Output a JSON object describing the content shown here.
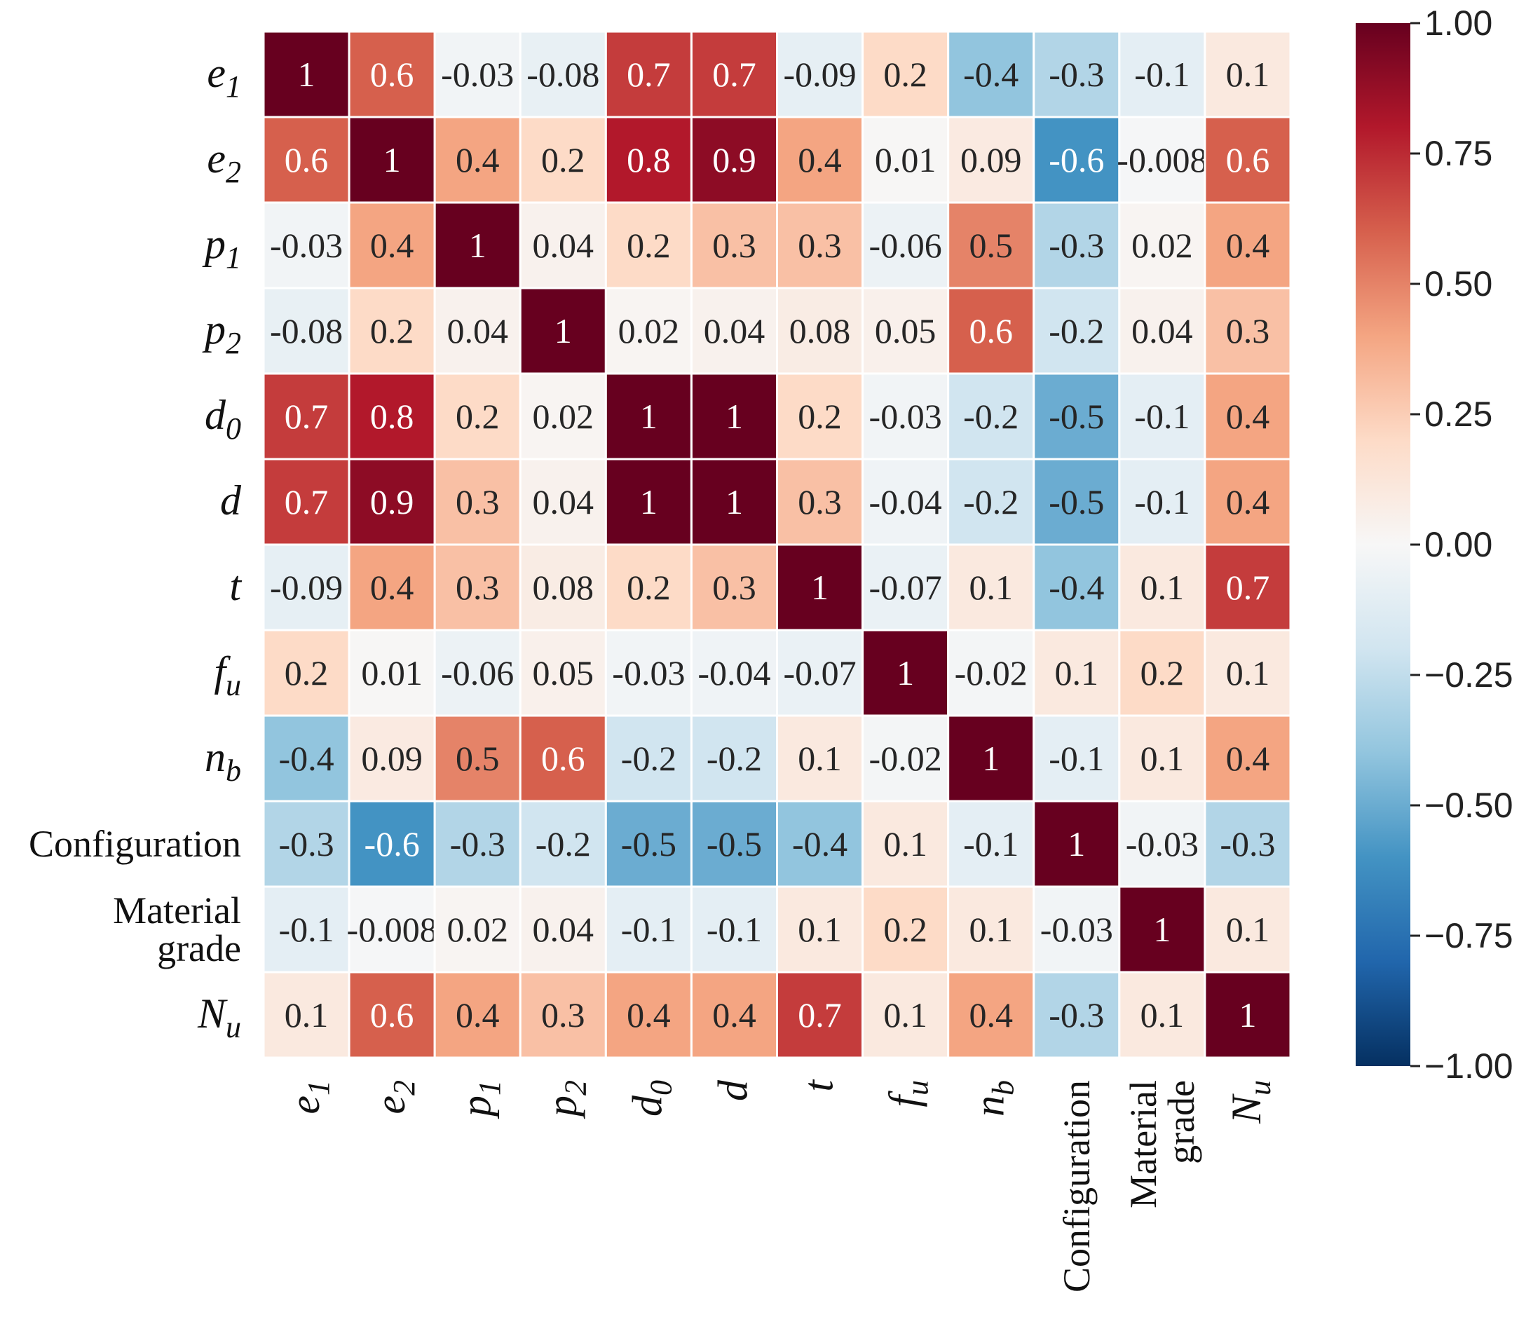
{
  "chart_data": {
    "type": "heatmap",
    "title": "",
    "variables": [
      {
        "key": "e1",
        "base": "e",
        "sub": "1"
      },
      {
        "key": "e2",
        "base": "e",
        "sub": "2"
      },
      {
        "key": "p1",
        "base": "p",
        "sub": "1"
      },
      {
        "key": "p2",
        "base": "p",
        "sub": "2"
      },
      {
        "key": "d0",
        "base": "d",
        "sub": "0"
      },
      {
        "key": "d",
        "base": "d",
        "sub": ""
      },
      {
        "key": "t",
        "base": "t",
        "sub": ""
      },
      {
        "key": "fu",
        "base": "f",
        "sub": "u"
      },
      {
        "key": "nb",
        "base": "n",
        "sub": "b"
      },
      {
        "key": "Configuration",
        "plain": [
          "Configuration"
        ]
      },
      {
        "key": "Material grade",
        "plain": [
          "Material",
          "grade"
        ]
      },
      {
        "key": "Nu",
        "base": "N",
        "sub": "u"
      }
    ],
    "values": [
      [
        "1",
        "0.6",
        "-0.03",
        "-0.08",
        "0.7",
        "0.7",
        "-0.09",
        "0.2",
        "-0.4",
        "-0.3",
        "-0.1",
        "0.1"
      ],
      [
        "0.6",
        "1",
        "0.4",
        "0.2",
        "0.8",
        "0.9",
        "0.4",
        "0.01",
        "0.09",
        "-0.6",
        "-0.008",
        "0.6"
      ],
      [
        "-0.03",
        "0.4",
        "1",
        "0.04",
        "0.2",
        "0.3",
        "0.3",
        "-0.06",
        "0.5",
        "-0.3",
        "0.02",
        "0.4"
      ],
      [
        "-0.08",
        "0.2",
        "0.04",
        "1",
        "0.02",
        "0.04",
        "0.08",
        "0.05",
        "0.6",
        "-0.2",
        "0.04",
        "0.3"
      ],
      [
        "0.7",
        "0.8",
        "0.2",
        "0.02",
        "1",
        "1",
        "0.2",
        "-0.03",
        "-0.2",
        "-0.5",
        "-0.1",
        "0.4"
      ],
      [
        "0.7",
        "0.9",
        "0.3",
        "0.04",
        "1",
        "1",
        "0.3",
        "-0.04",
        "-0.2",
        "-0.5",
        "-0.1",
        "0.4"
      ],
      [
        "-0.09",
        "0.4",
        "0.3",
        "0.08",
        "0.2",
        "0.3",
        "1",
        "-0.07",
        "0.1",
        "-0.4",
        "0.1",
        "0.7"
      ],
      [
        "0.2",
        "0.01",
        "-0.06",
        "0.05",
        "-0.03",
        "-0.04",
        "-0.07",
        "1",
        "-0.02",
        "0.1",
        "0.2",
        "0.1"
      ],
      [
        "-0.4",
        "0.09",
        "0.5",
        "0.6",
        "-0.2",
        "-0.2",
        "0.1",
        "-0.02",
        "1",
        "-0.1",
        "0.1",
        "0.4"
      ],
      [
        "-0.3",
        "-0.6",
        "-0.3",
        "-0.2",
        "-0.5",
        "-0.5",
        "-0.4",
        "0.1",
        "-0.1",
        "1",
        "-0.03",
        "-0.3"
      ],
      [
        "-0.1",
        "-0.008",
        "0.02",
        "0.04",
        "-0.1",
        "-0.1",
        "0.1",
        "0.2",
        "0.1",
        "-0.03",
        "1",
        "0.1"
      ],
      [
        "0.1",
        "0.6",
        "0.4",
        "0.3",
        "0.4",
        "0.4",
        "0.7",
        "0.1",
        "0.4",
        "-0.3",
        "0.1",
        "1"
      ]
    ],
    "colorbar": {
      "range": [
        -1.0,
        1.0
      ],
      "ticks": [
        "1.00",
        "0.75",
        "0.50",
        "0.25",
        "0.00",
        "−0.25",
        "−0.50",
        "−0.75",
        "−1.00"
      ],
      "tick_values": [
        1.0,
        0.75,
        0.5,
        0.25,
        0.0,
        -0.25,
        -0.5,
        -0.75,
        -1.0
      ],
      "colormap": "RdBu_r",
      "stops": [
        "#053061",
        "#2166ac",
        "#4393c3",
        "#92c5de",
        "#d1e5f0",
        "#f7f7f7",
        "#fddbc7",
        "#f4a582",
        "#d6604d",
        "#b2182b",
        "#67001f"
      ]
    },
    "grid_line_color": "#ffffff"
  }
}
